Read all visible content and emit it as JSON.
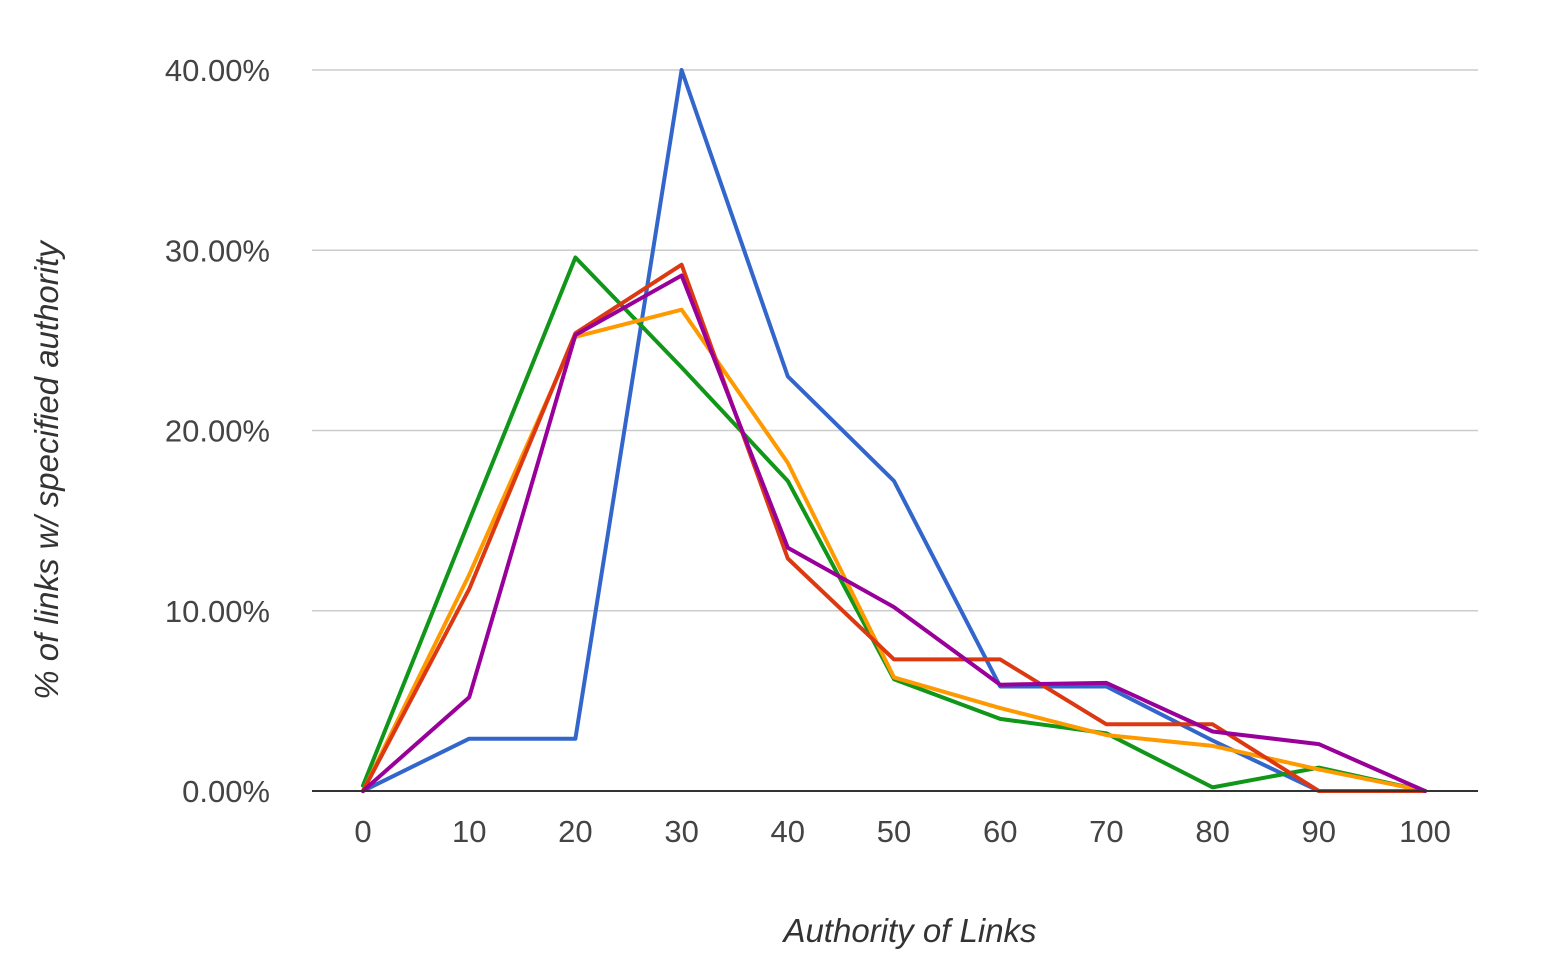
{
  "chart_data": {
    "type": "line",
    "title": "",
    "xlabel": "Authority of Links",
    "ylabel": "% of links w/ specified authority",
    "x": [
      0,
      10,
      20,
      30,
      40,
      50,
      60,
      70,
      80,
      90,
      100
    ],
    "x_tick_labels": [
      "0",
      "10",
      "20",
      "30",
      "40",
      "50",
      "60",
      "70",
      "80",
      "90",
      "100"
    ],
    "xlim": [
      0,
      100
    ],
    "ylim": [
      0,
      40
    ],
    "y_ticks": [
      0,
      10,
      20,
      30,
      40
    ],
    "y_tick_labels": [
      "0.00%",
      "10.00%",
      "20.00%",
      "30.00%",
      "40.00%"
    ],
    "grid": true,
    "legend": "none",
    "series": [
      {
        "color": "#3366cc",
        "values": [
          0,
          2.9,
          2.9,
          40.0,
          23.0,
          17.2,
          5.8,
          5.8,
          2.8,
          0,
          0
        ]
      },
      {
        "color": "#109618",
        "values": [
          0.3,
          15.0,
          29.6,
          23.5,
          17.2,
          6.2,
          4.0,
          3.2,
          0.2,
          1.3,
          0
        ]
      },
      {
        "color": "#ff9900",
        "values": [
          0,
          12.0,
          25.2,
          26.7,
          18.2,
          6.3,
          4.6,
          3.1,
          2.5,
          1.2,
          0
        ]
      },
      {
        "color": "#dc3912",
        "values": [
          0,
          11.2,
          25.4,
          29.2,
          12.9,
          7.3,
          7.3,
          3.7,
          3.7,
          0,
          0
        ]
      },
      {
        "color": "#990099",
        "values": [
          0,
          5.2,
          25.3,
          28.6,
          13.5,
          10.2,
          5.9,
          6.0,
          3.3,
          2.6,
          0
        ]
      }
    ]
  }
}
